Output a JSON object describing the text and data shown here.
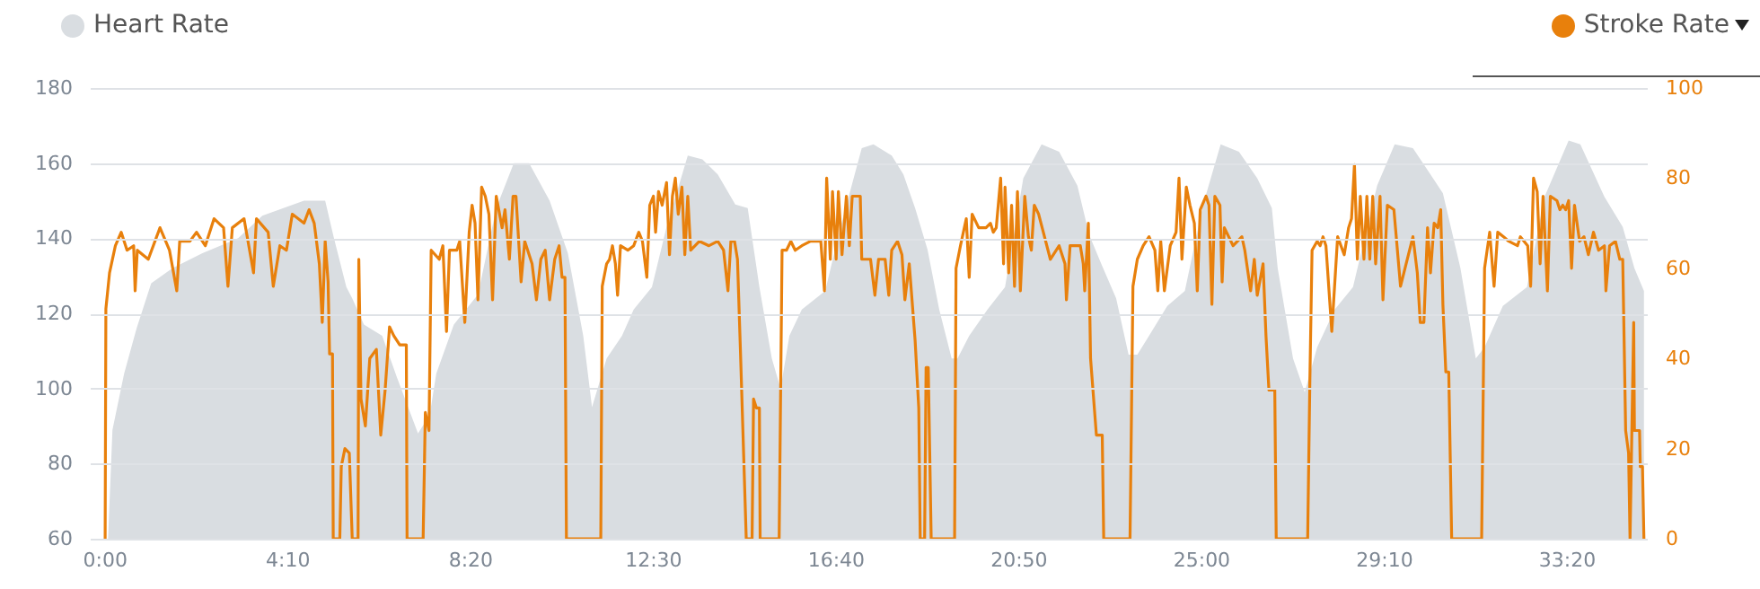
{
  "chart_data": {
    "type": "line",
    "series": [
      {
        "name": "Heart Rate",
        "type": "area",
        "color": "#d9dde1",
        "x": [
          5,
          11,
          27,
          44,
          64,
          93,
          134,
          183,
          216,
          273,
          302,
          314,
          331,
          339,
          355,
          380,
          400,
          429,
          445,
          454,
          478,
          511,
          536,
          560,
          581,
          609,
          634,
          655,
          667,
          687,
          708,
          724,
          749,
          769,
          798,
          818,
          839,
          863,
          880,
          896,
          913,
          925,
          937,
          954,
          986,
          1007,
          1036,
          1052,
          1077,
          1093,
          1109,
          1126,
          1142,
          1159,
          1167,
          1183,
          1208,
          1232,
          1257,
          1282,
          1306,
          1331,
          1347,
          1364,
          1384,
          1401,
          1413,
          1429,
          1454,
          1478,
          1503,
          1527,
          1552,
          1577,
          1597,
          1605,
          1626,
          1642,
          1659,
          1683,
          1708,
          1741,
          1765,
          1790,
          1814,
          1831,
          1855,
          1876,
          1888,
          1913,
          1946,
          1970,
          2003,
          2019,
          2052,
          2077,
          2093,
          2106
        ],
        "values": [
          60,
          89,
          104,
          116,
          128,
          132,
          136,
          140,
          146,
          150,
          150,
          140,
          127,
          124,
          117,
          114,
          103,
          88,
          93,
          104,
          117,
          125,
          148,
          160,
          160,
          150,
          136,
          114,
          95,
          108,
          114,
          121,
          127,
          143,
          162,
          161,
          157,
          149,
          148,
          127,
          108,
          100,
          114,
          121,
          126,
          143,
          164,
          165,
          162,
          157,
          148,
          137,
          121,
          108,
          108,
          114,
          121,
          127,
          156,
          165,
          163,
          154,
          141,
          133,
          124,
          109,
          109,
          114,
          122,
          126,
          149,
          165,
          163,
          156,
          148,
          132,
          108,
          99,
          111,
          121,
          127,
          154,
          165,
          164,
          157,
          152,
          132,
          108,
          111,
          122,
          127,
          151,
          166,
          165,
          151,
          143,
          132,
          126
        ]
      },
      {
        "name": "Stroke Rate",
        "type": "line",
        "axis": "y2",
        "color": "#e8800c",
        "x": [
          1,
          2,
          7,
          15,
          23,
          31,
          40,
          42,
          45,
          60,
          76,
          89,
          99,
          103,
          117,
          126,
          138,
          150,
          163,
          169,
          175,
          191,
          204,
          208,
          224,
          231,
          240,
          249,
          257,
          273,
          280,
          287,
          294,
          298,
          302,
          306,
          308,
          312,
          313,
          322,
          324,
          329,
          335,
          339,
          347,
          348,
          351,
          357,
          363,
          372,
          378,
          384,
          390,
          396,
          404,
          413,
          414,
          436,
          439,
          444,
          447,
          458,
          463,
          468,
          472,
          482,
          486,
          493,
          499,
          503,
          507,
          511,
          516,
          521,
          526,
          531,
          536,
          544,
          548,
          554,
          559,
          563,
          570,
          575,
          585,
          591,
          597,
          603,
          609,
          616,
          622,
          626,
          630,
          632,
          679,
          681,
          687,
          691,
          695,
          699,
          702,
          706,
          716,
          724,
          731,
          736,
          742,
          746,
          751,
          754,
          758,
          763,
          769,
          773,
          777,
          781,
          785,
          790,
          794,
          798,
          802,
          814,
          827,
          839,
          847,
          853,
          857,
          862,
          866,
          870,
          878,
          886,
          888,
          892,
          896,
          897,
          923,
          927,
          933,
          939,
          945,
          954,
          966,
          980,
          985,
          988,
          993,
          996,
          1001,
          1004,
          1009,
          1015,
          1019,
          1023,
          1034,
          1036,
          1048,
          1054,
          1059,
          1068,
          1073,
          1077,
          1085,
          1091,
          1095,
          1101,
          1109,
          1114,
          1116,
          1122,
          1124,
          1127,
          1129,
          1131,
          1163,
          1165,
          1171,
          1179,
          1183,
          1187,
          1196,
          1206,
          1212,
          1216,
          1220,
          1226,
          1230,
          1232,
          1237,
          1241,
          1245,
          1249,
          1253,
          1259,
          1264,
          1268,
          1272,
          1278,
          1294,
          1306,
          1314,
          1316,
          1321,
          1327,
          1335,
          1339,
          1341,
          1346,
          1349,
          1357,
          1362,
          1365,
          1367,
          1403,
          1407,
          1413,
          1421,
          1429,
          1437,
          1441,
          1445,
          1450,
          1458,
          1466,
          1470,
          1474,
          1480,
          1485,
          1491,
          1495,
          1499,
          1507,
          1511,
          1515,
          1519,
          1526,
          1529,
          1532,
          1544,
          1556,
          1560,
          1568,
          1573,
          1577,
          1585,
          1589,
          1593,
          1601,
          1603,
          1646,
          1649,
          1652,
          1659,
          1663,
          1667,
          1671,
          1679,
          1687,
          1696,
          1702,
          1706,
          1710,
          1714,
          1718,
          1723,
          1727,
          1731,
          1735,
          1739,
          1745,
          1749,
          1755,
          1764,
          1773,
          1790,
          1796,
          1800,
          1805,
          1810,
          1814,
          1819,
          1824,
          1828,
          1831,
          1835,
          1839,
          1843,
          1884,
          1888,
          1895,
          1901,
          1906,
          1914,
          1921,
          1933,
          1937,
          1947,
          1951,
          1955,
          1960,
          1964,
          1968,
          1974,
          1978,
          1987,
          1991,
          1995,
          1999,
          2003,
          2007,
          2011,
          2018,
          2024,
          2030,
          2037,
          2044,
          2052,
          2054,
          2059,
          2067,
          2073,
          2077,
          2081,
          2085,
          2087,
          2092,
          2093,
          2100,
          2101,
          2104,
          2106
        ],
        "values": [
          0,
          51,
          59,
          65,
          68,
          64,
          65,
          55,
          64,
          62,
          69,
          64,
          55,
          66,
          66,
          68,
          65,
          71,
          69,
          56,
          69,
          71,
          59,
          71,
          68,
          56,
          65,
          64,
          72,
          70,
          73,
          70,
          61,
          48,
          66,
          57,
          41,
          41,
          0,
          0,
          16,
          20,
          19,
          0,
          0,
          62,
          31,
          25,
          40,
          42,
          23,
          33,
          47,
          45,
          43,
          43,
          0,
          0,
          28,
          24,
          64,
          62,
          65,
          46,
          64,
          64,
          66,
          48,
          68,
          74,
          70,
          53,
          78,
          76,
          72,
          53,
          76,
          69,
          73,
          62,
          76,
          76,
          57,
          66,
          61,
          53,
          62,
          64,
          53,
          62,
          65,
          58,
          58,
          0,
          0,
          56,
          61,
          62,
          65,
          61,
          54,
          65,
          64,
          65,
          68,
          66,
          58,
          74,
          76,
          68,
          77,
          74,
          79,
          63,
          76,
          80,
          72,
          78,
          63,
          76,
          64,
          66,
          65,
          66,
          64,
          55,
          66,
          66,
          62,
          42,
          0,
          0,
          31,
          29,
          29,
          0,
          0,
          64,
          64,
          66,
          64,
          65,
          66,
          66,
          55,
          80,
          62,
          77,
          62,
          77,
          63,
          76,
          65,
          76,
          76,
          62,
          62,
          54,
          62,
          62,
          54,
          64,
          66,
          63,
          53,
          61,
          44,
          29,
          0,
          0,
          38,
          38,
          19,
          0,
          0,
          60,
          65,
          71,
          58,
          72,
          69,
          69,
          70,
          68,
          69,
          80,
          61,
          78,
          59,
          74,
          56,
          77,
          55,
          76,
          67,
          64,
          74,
          72,
          62,
          65,
          61,
          53,
          65,
          65,
          65,
          61,
          55,
          70,
          40,
          23,
          23,
          23,
          0,
          0,
          56,
          62,
          65,
          67,
          64,
          55,
          66,
          55,
          65,
          68,
          80,
          62,
          78,
          74,
          70,
          55,
          73,
          76,
          74,
          52,
          76,
          74,
          57,
          69,
          65,
          67,
          64,
          55,
          62,
          54,
          61,
          45,
          33,
          33,
          0,
          0,
          35,
          64,
          66,
          65,
          67,
          65,
          46,
          67,
          63,
          69,
          71,
          83,
          62,
          76,
          62,
          76,
          62,
          76,
          61,
          76,
          53,
          74,
          73,
          56,
          67,
          59,
          48,
          48,
          69,
          59,
          70,
          69,
          73,
          52,
          37,
          37,
          0,
          0,
          60,
          68,
          56,
          68,
          67,
          66,
          65,
          67,
          65,
          56,
          80,
          77,
          61,
          76,
          55,
          76,
          75,
          73,
          74,
          73,
          75,
          60,
          74,
          66,
          67,
          63,
          68,
          64,
          65,
          55,
          65,
          66,
          62,
          62,
          24,
          19,
          0,
          48,
          24,
          24,
          16,
          16,
          0
        ]
      }
    ],
    "xlim": [
      -20,
      2110
    ],
    "xticks": [
      {
        "value": 0,
        "label": "0:00"
      },
      {
        "value": 250,
        "label": "4:10"
      },
      {
        "value": 500,
        "label": "8:20"
      },
      {
        "value": 750,
        "label": "12:30"
      },
      {
        "value": 1000,
        "label": "16:40"
      },
      {
        "value": 1250,
        "label": "20:50"
      },
      {
        "value": 1500,
        "label": "25:00"
      },
      {
        "value": 1750,
        "label": "29:10"
      },
      {
        "value": 2000,
        "label": "33:20"
      }
    ],
    "ylim": [
      60,
      180
    ],
    "yticks": [
      60,
      80,
      100,
      120,
      140,
      160,
      180
    ],
    "y2lim": [
      0,
      100
    ],
    "y2ticks": [
      0,
      20,
      40,
      60,
      80,
      100
    ],
    "grid": "y",
    "legend": "top"
  }
}
